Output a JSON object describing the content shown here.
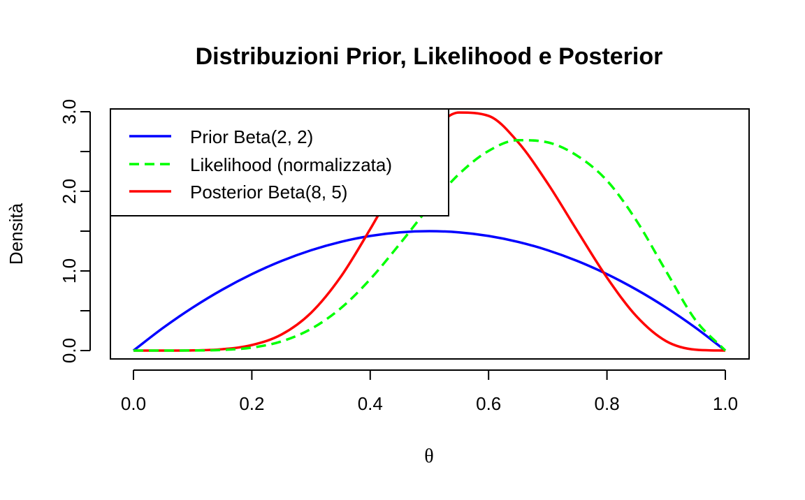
{
  "chart_data": {
    "type": "line",
    "title": "Distribuzioni Prior, Likelihood e Posterior",
    "xlabel": "θ",
    "ylabel": "Densità",
    "xlim": [
      0.0,
      1.0
    ],
    "ylim": [
      0.0,
      3.0
    ],
    "xticks": [
      "0.0",
      "0.2",
      "0.4",
      "0.6",
      "0.8",
      "1.0"
    ],
    "yticks": [
      "0.0",
      "1.0",
      "2.0",
      "3.0"
    ],
    "grid": false,
    "legend_position": "top-left",
    "x": [
      0.0,
      0.05,
      0.1,
      0.15,
      0.2,
      0.25,
      0.3,
      0.35,
      0.4,
      0.45,
      0.5,
      0.55,
      0.6,
      0.65,
      0.7,
      0.75,
      0.8,
      0.85,
      0.9,
      0.95,
      1.0
    ],
    "series": [
      {
        "name": "Prior Beta(2, 2)",
        "color": "#0000ff",
        "dash": "solid",
        "values": [
          0.0,
          0.285,
          0.54,
          0.765,
          0.96,
          1.125,
          1.26,
          1.365,
          1.44,
          1.485,
          1.5,
          1.485,
          1.44,
          1.365,
          1.26,
          1.125,
          0.96,
          0.765,
          0.54,
          0.285,
          0.0
        ]
      },
      {
        "name": "Likelihood (normalizzata)",
        "color": "#00ff00",
        "dash": "dashed",
        "values": [
          0.0,
          0.0,
          0.001,
          0.008,
          0.037,
          0.115,
          0.272,
          0.53,
          0.896,
          1.34,
          1.805,
          2.217,
          2.508,
          2.643,
          2.615,
          2.446,
          2.135,
          1.63,
          0.996,
          0.379,
          0.0
        ]
      },
      {
        "name": "Posterior Beta(8, 5)",
        "color": "#ff0000",
        "dash": "solid",
        "values": [
          0.0,
          0.0,
          0.002,
          0.017,
          0.069,
          0.201,
          0.474,
          0.924,
          1.526,
          2.172,
          2.707,
          2.99,
          2.948,
          2.616,
          2.098,
          1.502,
          0.917,
          0.429,
          0.118,
          0.011,
          0.0
        ]
      }
    ]
  }
}
